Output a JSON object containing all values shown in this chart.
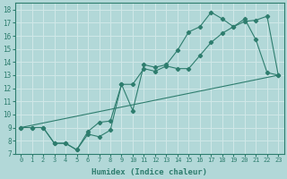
{
  "xlabel": "Humidex (Indice chaleur)",
  "bg_color": "#b2d8d8",
  "grid_color": "#d0e8e8",
  "line_color": "#2e7d6e",
  "xlim": [
    -0.5,
    23.5
  ],
  "ylim": [
    7,
    18.5
  ],
  "xticks": [
    0,
    1,
    2,
    3,
    4,
    5,
    6,
    7,
    8,
    9,
    10,
    11,
    12,
    13,
    14,
    15,
    16,
    17,
    18,
    19,
    20,
    21,
    22,
    23
  ],
  "yticks": [
    7,
    8,
    9,
    10,
    11,
    12,
    13,
    14,
    15,
    16,
    17,
    18
  ],
  "line1_x": [
    0,
    1,
    2,
    3,
    4,
    5,
    6,
    7,
    8,
    9,
    10,
    11,
    12,
    13,
    14,
    15,
    16,
    17,
    18,
    19,
    20,
    21,
    22,
    23
  ],
  "line1_y": [
    9.0,
    9.0,
    9.0,
    7.8,
    7.8,
    7.3,
    8.5,
    8.3,
    8.8,
    12.3,
    10.3,
    13.8,
    13.6,
    13.8,
    14.9,
    16.3,
    16.7,
    17.8,
    17.3,
    16.7,
    17.3,
    15.7,
    13.2,
    13.0
  ],
  "line2_x": [
    0,
    23
  ],
  "line2_y": [
    9.0,
    13.0
  ],
  "line3_x": [
    0,
    1,
    2,
    3,
    4,
    5,
    6,
    7,
    8,
    9,
    10,
    11,
    12,
    13,
    14,
    15,
    16,
    17,
    18,
    19,
    20,
    21,
    22,
    23
  ],
  "line3_y": [
    9.0,
    9.0,
    9.0,
    7.8,
    7.8,
    7.3,
    8.7,
    9.4,
    9.5,
    12.3,
    12.3,
    13.5,
    13.3,
    13.7,
    13.5,
    13.5,
    14.5,
    15.5,
    16.2,
    16.7,
    17.1,
    17.2,
    17.5,
    13.0
  ]
}
